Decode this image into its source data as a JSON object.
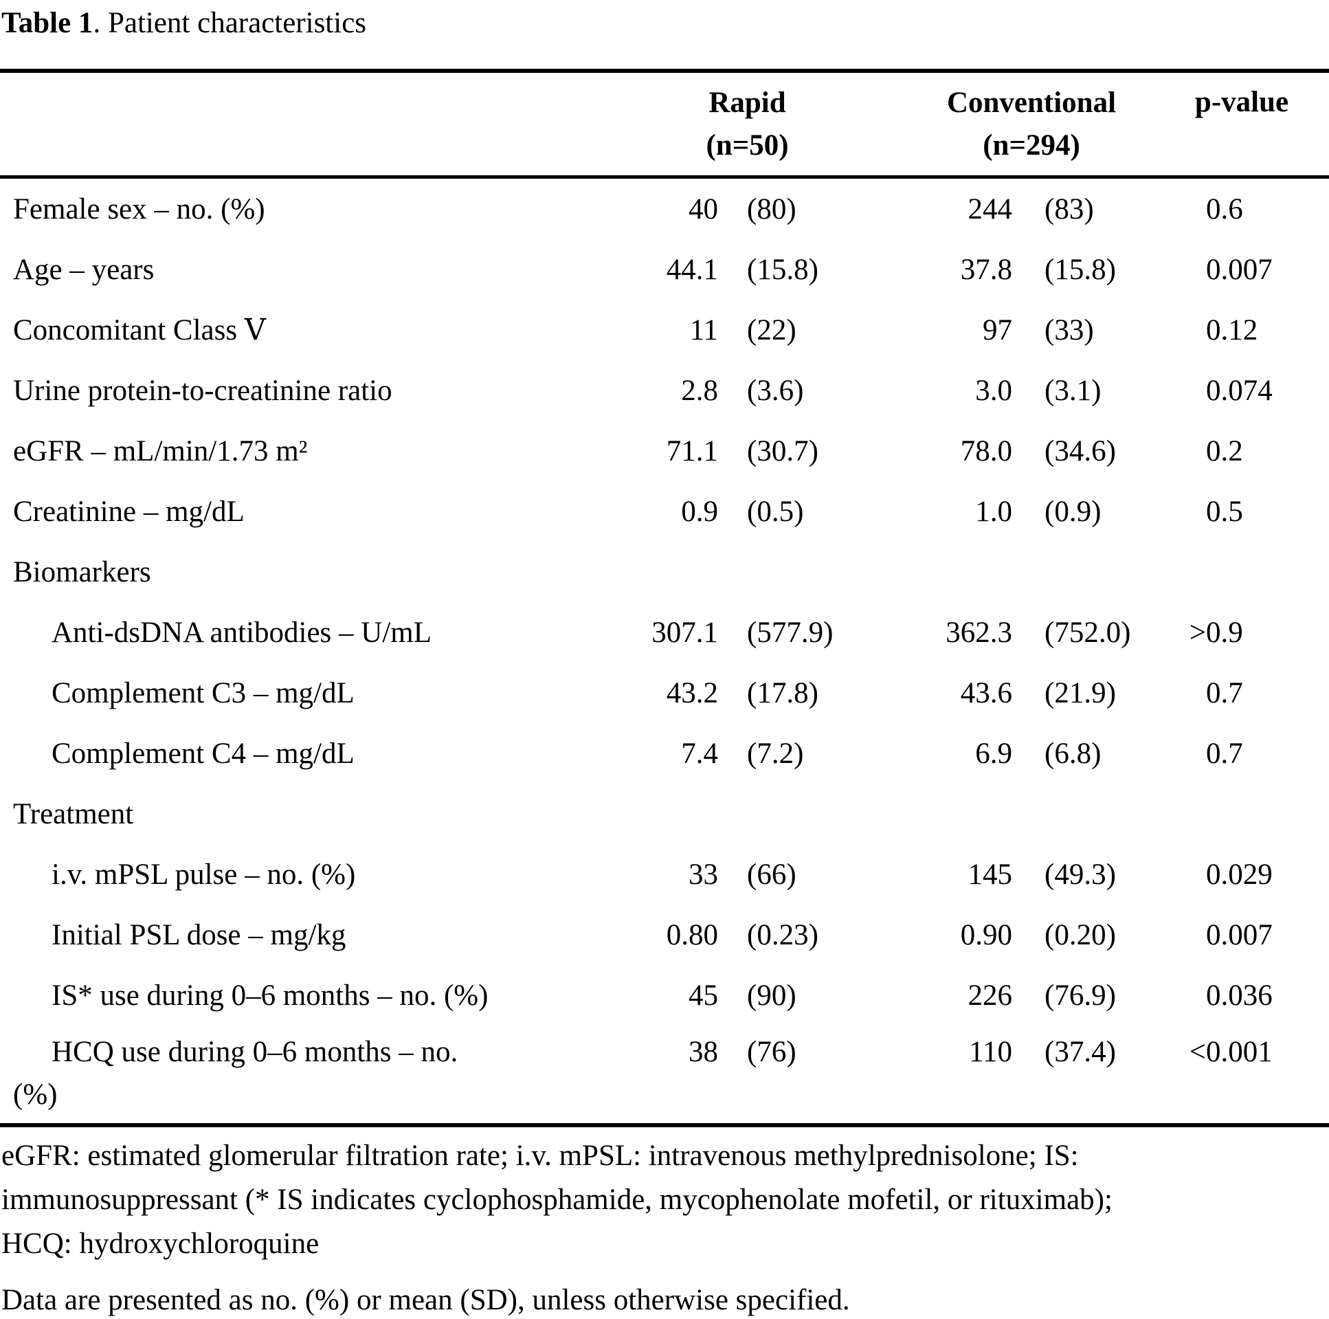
{
  "title": {
    "bold": "Table 1",
    "rest": ". Patient characteristics"
  },
  "table": {
    "col_headers": {
      "rapid_line1": "Rapid",
      "rapid_line2": "(n=50)",
      "conventional_line1": "Conventional",
      "conventional_line2": "(n=294)",
      "p": "p-value"
    },
    "rows": [
      {
        "label": "Female sex – no. (%)",
        "indent": false,
        "section": false,
        "rapid_mean": "40",
        "rapid_sd": "(80)",
        "conv_mean": "244",
        "conv_sd": "(83)",
        "p": "0.6"
      },
      {
        "label": "Age – years",
        "indent": false,
        "section": false,
        "rapid_mean": "44.1",
        "rapid_sd": "(15.8)",
        "conv_mean": "37.8",
        "conv_sd": "(15.8)",
        "p": "0.007"
      },
      {
        "label": "Concomitant Class Ⅴ",
        "indent": false,
        "section": false,
        "rapid_mean": "11",
        "rapid_sd": "(22)",
        "conv_mean": "97",
        "conv_sd": "(33)",
        "p": "0.12"
      },
      {
        "label": "Urine protein-to-creatinine ratio",
        "indent": false,
        "section": false,
        "rapid_mean": "2.8",
        "rapid_sd": "(3.6)",
        "conv_mean": "3.0",
        "conv_sd": "(3.1)",
        "p": "0.074"
      },
      {
        "label": "eGFR – mL/min/1.73 m²",
        "indent": false,
        "section": false,
        "rapid_mean": "71.1",
        "rapid_sd": "(30.7)",
        "conv_mean": "78.0",
        "conv_sd": "(34.6)",
        "p": "0.2"
      },
      {
        "label": "Creatinine – mg/dL",
        "indent": false,
        "section": false,
        "rapid_mean": "0.9",
        "rapid_sd": "(0.5)",
        "conv_mean": "1.0",
        "conv_sd": "(0.9)",
        "p": "0.5"
      },
      {
        "label": "Biomarkers",
        "indent": false,
        "section": true,
        "rapid_mean": "",
        "rapid_sd": "",
        "conv_mean": "",
        "conv_sd": "",
        "p": ""
      },
      {
        "label": "Anti-dsDNA antibodies – U/mL",
        "indent": true,
        "section": false,
        "rapid_mean": "307.1",
        "rapid_sd": "(577.9)",
        "conv_mean": "362.3",
        "conv_sd": "(752.0)",
        "p": ">0.9"
      },
      {
        "label": "Complement C3 – mg/dL",
        "indent": true,
        "section": false,
        "rapid_mean": "43.2",
        "rapid_sd": "(17.8)",
        "conv_mean": "43.6",
        "conv_sd": "(21.9)",
        "p": "0.7"
      },
      {
        "label": "Complement C4 – mg/dL",
        "indent": true,
        "section": false,
        "rapid_mean": "7.4",
        "rapid_sd": "(7.2)",
        "conv_mean": "6.9",
        "conv_sd": "(6.8)",
        "p": "0.7"
      },
      {
        "label": "Treatment",
        "indent": false,
        "section": true,
        "rapid_mean": "",
        "rapid_sd": "",
        "conv_mean": "",
        "conv_sd": "",
        "p": ""
      },
      {
        "label": "i.v. mPSL pulse – no. (%)",
        "indent": true,
        "section": false,
        "rapid_mean": "33",
        "rapid_sd": "(66)",
        "conv_mean": "145",
        "conv_sd": "(49.3)",
        "p": "0.029"
      },
      {
        "label": "Initial PSL dose – mg/kg",
        "indent": true,
        "section": false,
        "rapid_mean": "0.80",
        "rapid_sd": "(0.23)",
        "conv_mean": "0.90",
        "conv_sd": "(0.20)",
        "p": "0.007"
      },
      {
        "label": "IS* use during 0–6 months – no. (%)",
        "indent": true,
        "section": false,
        "rapid_mean": "45",
        "rapid_sd": "(90)",
        "conv_mean": "226",
        "conv_sd": "(76.9)",
        "p": "0.036"
      },
      {
        "label": "HCQ use during 0–6 months – no.",
        "label2": "(%)",
        "indent": true,
        "section": false,
        "rapid_mean": "38",
        "rapid_sd": "(76)",
        "conv_mean": "110",
        "conv_sd": "(37.4)",
        "p": "<0.001"
      }
    ]
  },
  "footnotes": {
    "abbrev_lines": [
      "eGFR: estimated glomerular filtration rate; i.v. mPSL: intravenous methylprednisolone; IS:",
      "immunosuppressant (* IS indicates cyclophosphamide, mycophenolate mofetil, or rituximab);",
      "HCQ: hydroxychloroquine"
    ],
    "data_note": "Data are presented as no. (%) or mean (SD), unless otherwise specified."
  }
}
